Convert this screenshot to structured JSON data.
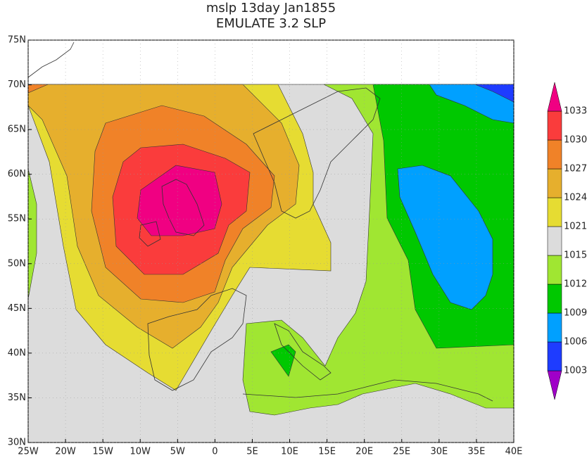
{
  "chart_data": {
    "type": "contour-map",
    "title": "mslp 13day Jan1855",
    "subtitle": "EMULATE 3.2 SLP",
    "xlim": [
      -25,
      40
    ],
    "ylim": [
      30,
      75
    ],
    "xticks": [
      {
        "value": -25,
        "label": "25W"
      },
      {
        "value": -20,
        "label": "20W"
      },
      {
        "value": -15,
        "label": "15W"
      },
      {
        "value": -10,
        "label": "10W"
      },
      {
        "value": -5,
        "label": "5W"
      },
      0,
      {
        "value": 5,
        "label": "5E"
      },
      {
        "value": 10,
        "label": "10E"
      },
      {
        "value": 15,
        "label": "15E"
      },
      {
        "value": 20,
        "label": "20E"
      },
      {
        "value": 25,
        "label": "25E"
      },
      {
        "value": 30,
        "label": "30E"
      },
      {
        "value": 35,
        "label": "35E"
      },
      {
        "value": 40,
        "label": "40E"
      }
    ],
    "yticks": [
      {
        "value": 30,
        "label": "30N"
      },
      {
        "value": 35,
        "label": "35N"
      },
      {
        "value": 40,
        "label": "40N"
      },
      {
        "value": 45,
        "label": "45N"
      },
      {
        "value": 50,
        "label": "50N"
      },
      {
        "value": 55,
        "label": "55N"
      },
      {
        "value": 60,
        "label": "60N"
      },
      {
        "value": 65,
        "label": "65N"
      },
      {
        "value": 70,
        "label": "70N"
      },
      {
        "value": 75,
        "label": "75N"
      }
    ],
    "levels": [
      1003,
      1006,
      1009,
      1012,
      1015,
      1021,
      1024,
      1027,
      1030,
      1033
    ],
    "colors": [
      "#a000c8",
      "#1e3cff",
      "#00a0ff",
      "#00c800",
      "#a0e632",
      "#dcdcdc",
      "#e6dc32",
      "#e6af2d",
      "#f08228",
      "#fa3c3c",
      "#f00082"
    ]
  }
}
